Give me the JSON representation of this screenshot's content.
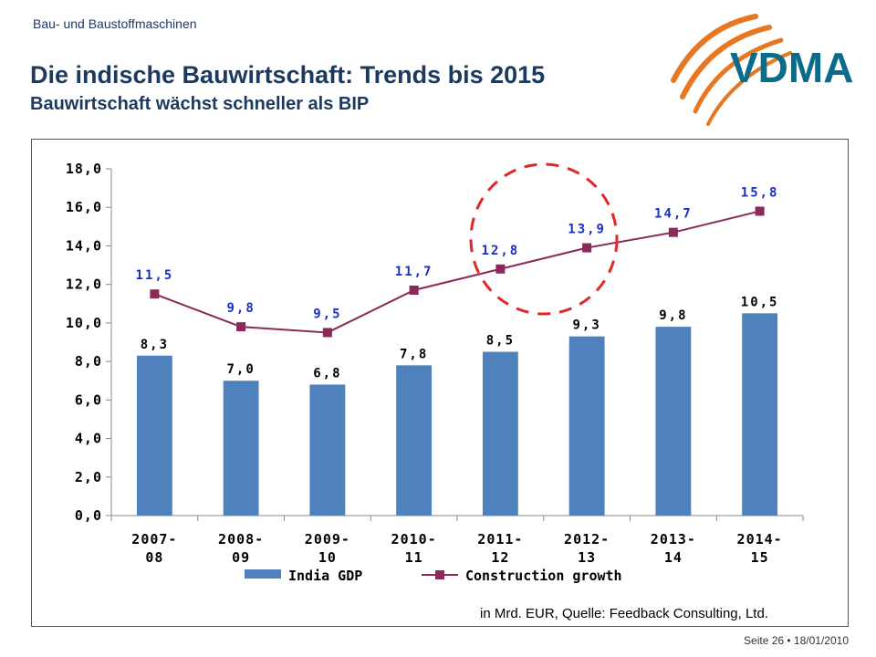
{
  "slide": {
    "header_small": "Bau- und Baustoffmaschinen",
    "title": "Die indische Bauwirtschaft: Trends bis 2015",
    "subtitle": "Bauwirtschaft wächst schneller als BIP",
    "logo_text": "VDMA",
    "source": "in Mrd. EUR, Quelle: Feedback Consulting, Ltd.",
    "footer": "Seite 26 • 18/01/2010"
  },
  "colors": {
    "bar": "#4f81bd",
    "line": "#8b2a5a",
    "line_labels": "#1c2fc4",
    "highlight_circle": "#e0282a",
    "title": "#1c3a5e",
    "logo_text": "#0a6b8a",
    "logo_arcs": "#e87722"
  },
  "chart_data": {
    "type": "bar",
    "categories": [
      [
        "2007-",
        "08"
      ],
      [
        "2008-",
        "09"
      ],
      [
        "2009-",
        "10"
      ],
      [
        "2010-",
        "11"
      ],
      [
        "2011-",
        "12"
      ],
      [
        "2012-",
        "13"
      ],
      [
        "2013-",
        "14"
      ],
      [
        "2014-",
        "15"
      ]
    ],
    "series": [
      {
        "name": "India GDP",
        "type": "bar",
        "values": [
          8.3,
          7.0,
          6.8,
          7.8,
          8.5,
          9.3,
          9.8,
          10.5
        ],
        "labels": [
          "8,3",
          "7,0",
          "6,8",
          "7,8",
          "8,5",
          "9,3",
          "9,8",
          "10,5"
        ]
      },
      {
        "name": "Construction growth",
        "type": "line",
        "values": [
          11.5,
          9.8,
          9.5,
          11.7,
          12.8,
          13.9,
          14.7,
          15.8
        ],
        "labels": [
          "11,5",
          "9,8",
          "9,5",
          "11,7",
          "12,8",
          "13,9",
          "14,7",
          "15,8"
        ]
      }
    ],
    "ylim": [
      0,
      18
    ],
    "yticks": [
      "0,0",
      "2,0",
      "4,0",
      "6,0",
      "8,0",
      "10,0",
      "12,0",
      "14,0",
      "16,0",
      "18,0"
    ],
    "grid": false,
    "legend_position": "bottom",
    "highlight": "dashed red circle around 2011-12 and 2012-13 construction growth points"
  }
}
